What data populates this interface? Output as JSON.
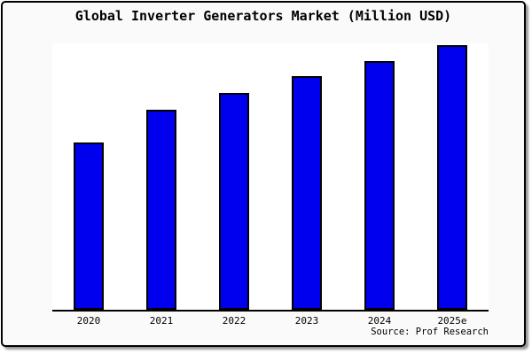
{
  "title": "Global Inverter Generators Market (Million USD)",
  "source": "Source: Prof Research",
  "colors": {
    "card_background": "#fafafa",
    "plot_background": "#ffffff",
    "bar_fill": "#0000ee",
    "bar_border": "#000000",
    "axis_line": "#000000",
    "frame_border": "#000000",
    "text": "#000000"
  },
  "chart_data": {
    "type": "bar",
    "title": "Global Inverter Generators Market (Million USD)",
    "categories": [
      "2020",
      "2021",
      "2022",
      "2023",
      "2024",
      "2025e"
    ],
    "values": [
      63.2,
      75.6,
      81.9,
      88.3,
      94.0,
      100
    ],
    "value_basis": "relative height, no y-axis labels shown; normalized so 2025e = 100",
    "xlabel": "",
    "ylabel": "",
    "ylim": [
      0,
      100
    ],
    "grid": false,
    "legend": false,
    "y_axis_shown": false,
    "bar_color": "#0000ee",
    "bar_border_color": "#000000"
  }
}
